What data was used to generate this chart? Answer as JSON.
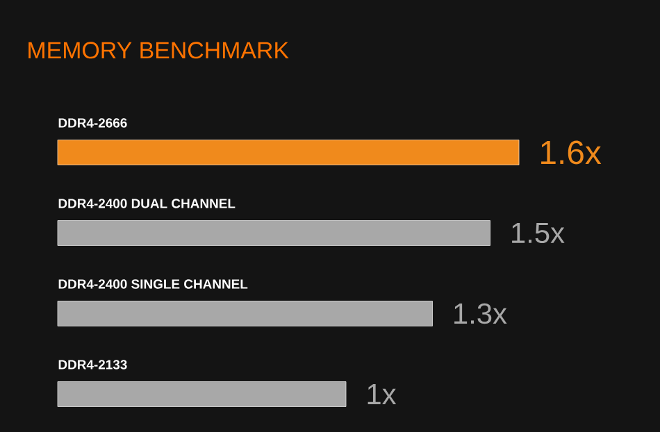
{
  "chart_data": {
    "type": "bar",
    "orientation": "horizontal",
    "title": "MEMORY BENCHMARK",
    "categories": [
      "DDR4-2666",
      "DDR4-2400 DUAL CHANNEL",
      "DDR4-2400 SINGLE CHANNEL",
      "DDR4-2133"
    ],
    "values": [
      1.6,
      1.5,
      1.3,
      1
    ],
    "colors": [
      "#f08a1c",
      "#a8a8a8",
      "#a8a8a8",
      "#a8a8a8"
    ],
    "value_labels": [
      "1.6x",
      "1.5x",
      "1.3x",
      "1x"
    ]
  }
}
